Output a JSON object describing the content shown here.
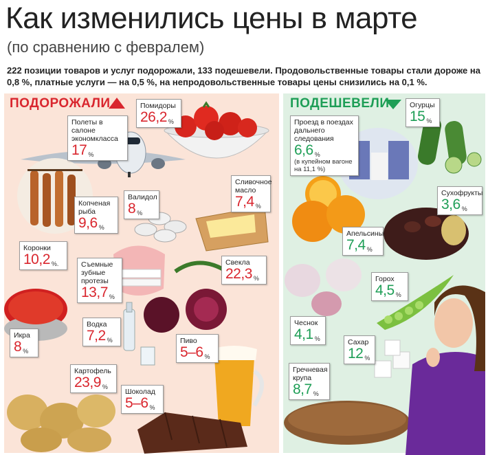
{
  "header": {
    "title": "Как изменились цены в марте",
    "subtitle": "(по сравнению с февралем)",
    "lead": "222 позиции товаров и услуг подорожали, 133 подешевели. Продовольственные товары стали дороже на 0,8 %, платные услуги — на 0,5 %, на непродовольственные товары цены снизились на 0,1 %."
  },
  "colors": {
    "up": "#d9262e",
    "down": "#1e9e56",
    "up_panel": "#fbe4d8",
    "down_panel": "#dff0e3"
  },
  "up": {
    "heading": "ПОДОРОЖАЛИ",
    "items": [
      {
        "label": "Помидоры",
        "value": "26,2",
        "unit": "%"
      },
      {
        "label": "Полеты в салоне экономкласса",
        "value": "17",
        "unit": "%"
      },
      {
        "label": "Сливочное масло",
        "value": "7,4",
        "unit": "%"
      },
      {
        "label": "Валидол",
        "value": "8",
        "unit": "%"
      },
      {
        "label": "Копченая рыба",
        "value": "9,6",
        "unit": "%"
      },
      {
        "label": "Коронки",
        "value": "10,2",
        "unit": "%."
      },
      {
        "label": "Съемные зубные протезы",
        "value": "13,7",
        "unit": "%"
      },
      {
        "label": "Свекла",
        "value": "22,3",
        "unit": "%"
      },
      {
        "label": "Икра",
        "value": "8",
        "unit": "%"
      },
      {
        "label": "Водка",
        "value": "7,2",
        "unit": "%"
      },
      {
        "label": "Пиво",
        "value": "5–6",
        "unit": "%"
      },
      {
        "label": "Картофель",
        "value": "23,9",
        "unit": "%"
      },
      {
        "label": "Шоколад",
        "value": "5–6",
        "unit": "%"
      }
    ]
  },
  "down": {
    "heading": "ПОДЕШЕВЕЛИ",
    "items": [
      {
        "label": "Огурцы",
        "value": "15",
        "unit": "%"
      },
      {
        "label": "Проезд в поездах дальнего следования",
        "value": "6,6",
        "unit": "%",
        "note": "(в купейном вагоне на 11,1 %)"
      },
      {
        "label": "Сухофрукты",
        "value": "3,6",
        "unit": "%"
      },
      {
        "label": "Апельсины",
        "value": "7,4",
        "unit": "%"
      },
      {
        "label": "Горох",
        "value": "4,5",
        "unit": "%"
      },
      {
        "label": "Чеснок",
        "value": "4,1",
        "unit": "%"
      },
      {
        "label": "Сахар",
        "value": "12",
        "unit": "%"
      },
      {
        "label": "Гречневая крупа",
        "value": "8,7",
        "unit": "%"
      }
    ]
  }
}
